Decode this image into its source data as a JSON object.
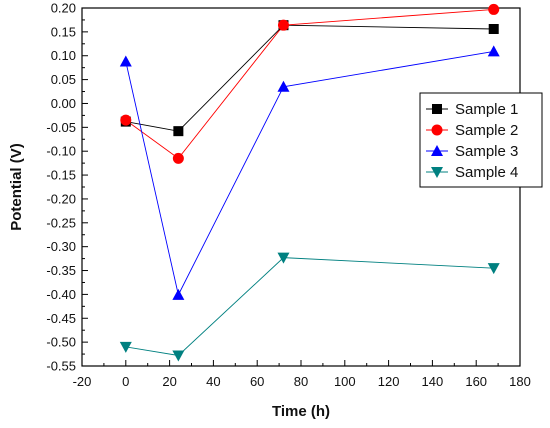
{
  "chart_data": {
    "type": "line",
    "title": "",
    "xlabel": "Time (h)",
    "ylabel": "Potential (V)",
    "xlim": [
      -20,
      180
    ],
    "ylim": [
      -0.55,
      0.2
    ],
    "xticks": [
      -20,
      0,
      20,
      40,
      60,
      80,
      100,
      120,
      140,
      160,
      180
    ],
    "yticks": [
      0.2,
      0.15,
      0.1,
      0.05,
      0.0,
      -0.05,
      -0.1,
      -0.15,
      -0.2,
      -0.25,
      -0.3,
      -0.35,
      -0.4,
      -0.45,
      -0.5,
      -0.55
    ],
    "xtick_labels": [
      "-20",
      "0",
      "20",
      "40",
      "60",
      "80",
      "100",
      "120",
      "140",
      "160",
      "180"
    ],
    "ytick_labels": [
      "0.20",
      "0.15",
      "0.10",
      "0.05",
      "0.00",
      "-0.05",
      "-0.10",
      "-0.15",
      "-0.20",
      "-0.25",
      "-0.30",
      "-0.35",
      "-0.40",
      "-0.45",
      "-0.50",
      "-0.55"
    ],
    "grid": false,
    "legend_position": "right",
    "x": [
      0,
      24,
      72,
      168
    ],
    "series": [
      {
        "name": "Sample 1",
        "values": [
          -0.038,
          -0.058,
          0.164,
          0.156
        ],
        "color": "#000000",
        "marker": "square"
      },
      {
        "name": "Sample 2",
        "values": [
          -0.035,
          -0.115,
          0.164,
          0.197
        ],
        "color": "#ff0000",
        "marker": "circle"
      },
      {
        "name": "Sample 3",
        "values": [
          0.088,
          -0.401,
          0.035,
          0.109
        ],
        "color": "#0000ff",
        "marker": "triangle-up"
      },
      {
        "name": "Sample 4",
        "values": [
          -0.51,
          -0.528,
          -0.323,
          -0.345
        ],
        "color": "#008080",
        "marker": "triangle-down"
      }
    ]
  }
}
